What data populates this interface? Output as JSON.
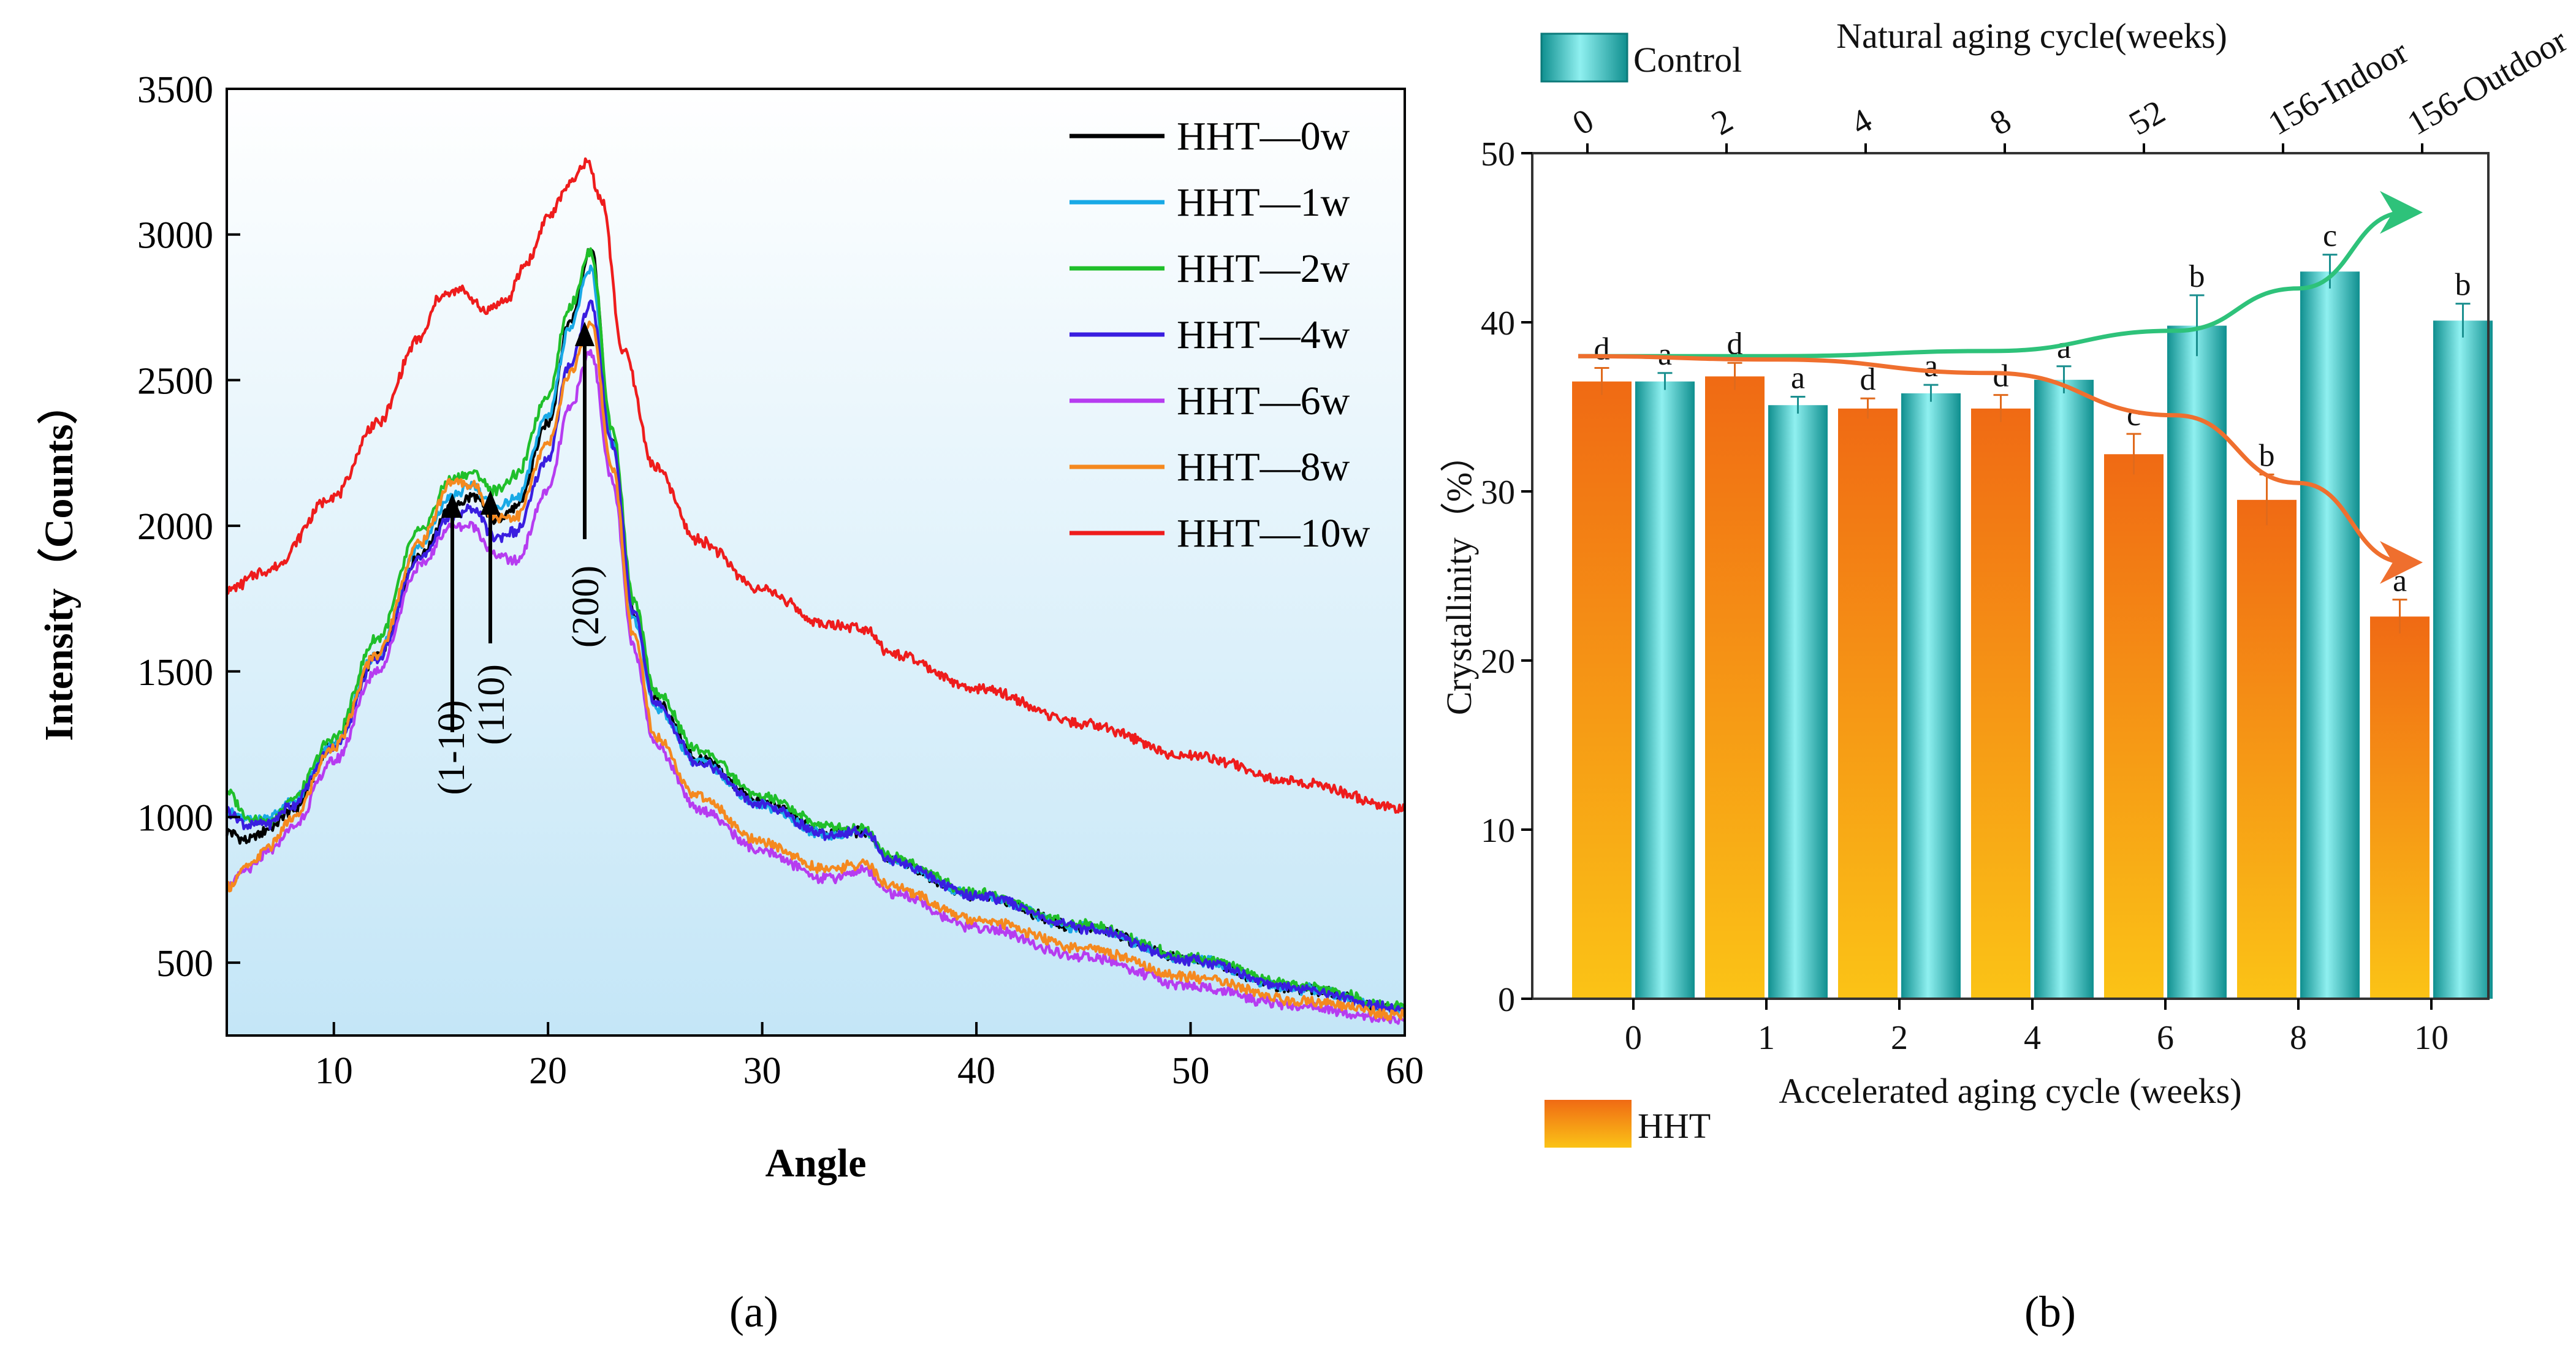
{
  "panel_a": {
    "panel_label": "(a)",
    "legend_items": [
      {
        "name": "HHT—0w",
        "color": "#000000"
      },
      {
        "name": "HHT—1w",
        "color": "#19a9e6"
      },
      {
        "name": "HHT—2w",
        "color": "#1fbf2a"
      },
      {
        "name": "HHT—4w",
        "color": "#3a1ee0"
      },
      {
        "name": "HHT—6w",
        "color": "#b63cf0"
      },
      {
        "name": "HHT—8w",
        "color": "#f5891f"
      },
      {
        "name": "HHT—10w",
        "color": "#ee1c1c"
      }
    ],
    "annotations": [
      "(1-10)",
      "(110)",
      "(200)"
    ]
  },
  "panel_b": {
    "panel_label": "(b)",
    "legend_control": "Control",
    "legend_hht": "HHT"
  },
  "chart_data": [
    {
      "type": "line",
      "title": "",
      "xlabel": "Angle",
      "ylabel": "Intensity（Counts）",
      "xlim": [
        5,
        60
      ],
      "ylim": [
        250,
        3500
      ],
      "xticks": [
        10,
        20,
        30,
        40,
        50,
        60
      ],
      "yticks": [
        500,
        1000,
        1500,
        2000,
        2500,
        3000,
        3500
      ],
      "grid": false,
      "legend_position": "top-right",
      "series": [
        {
          "name": "HHT—0w",
          "x": [
            5,
            6,
            7,
            8,
            10,
            12,
            14,
            15.5,
            16.5,
            17.5,
            18.5,
            20,
            21,
            22,
            23,
            24,
            25,
            27,
            30,
            33,
            34.8,
            36,
            40,
            45,
            50,
            55,
            60
          ],
          "y": [
            950,
            920,
            960,
            1020,
            1250,
            1550,
            1900,
            2060,
            2100,
            2020,
            2060,
            2350,
            2700,
            2950,
            2300,
            1700,
            1400,
            1200,
            1050,
            950,
            950,
            850,
            730,
            620,
            510,
            410,
            340
          ]
        },
        {
          "name": "HHT—1w",
          "x": [
            5,
            6,
            7,
            8,
            10,
            12,
            14,
            15.5,
            16.5,
            17.5,
            18.5,
            20,
            21,
            22,
            23,
            24,
            25,
            27,
            30,
            33,
            34.8,
            36,
            40,
            45,
            50,
            55,
            60
          ],
          "y": [
            1020,
            990,
            1000,
            1050,
            1250,
            1560,
            1930,
            2100,
            2140,
            2060,
            2090,
            2380,
            2680,
            2880,
            2280,
            1680,
            1380,
            1190,
            1040,
            940,
            950,
            850,
            730,
            620,
            510,
            410,
            340
          ]
        },
        {
          "name": "HHT—2w",
          "x": [
            5,
            6,
            7,
            8,
            10,
            12,
            14,
            15.5,
            16.5,
            17.5,
            18.5,
            20,
            21,
            22,
            23,
            24,
            25,
            27,
            30,
            33,
            34.8,
            36,
            40,
            45,
            50,
            55,
            60
          ],
          "y": [
            1090,
            1000,
            980,
            1060,
            1270,
            1610,
            1980,
            2160,
            2180,
            2120,
            2170,
            2450,
            2750,
            2940,
            2330,
            1740,
            1430,
            1230,
            1070,
            970,
            960,
            860,
            740,
            630,
            520,
            420,
            350
          ]
        },
        {
          "name": "HHT—4w",
          "x": [
            5,
            6,
            7,
            8,
            10,
            12,
            14,
            15.5,
            16.5,
            17.5,
            18.5,
            20,
            21,
            22,
            23,
            24,
            25,
            27,
            30,
            33,
            34.8,
            36,
            40,
            45,
            50,
            55,
            60
          ],
          "y": [
            1020,
            970,
            980,
            1040,
            1240,
            1540,
            1890,
            2030,
            2060,
            1960,
            1980,
            2230,
            2550,
            2760,
            2280,
            1700,
            1390,
            1190,
            1040,
            940,
            950,
            850,
            730,
            620,
            510,
            410,
            340
          ]
        },
        {
          "name": "HHT—6w",
          "x": [
            5,
            6,
            7,
            8,
            10,
            12,
            14,
            15.5,
            16.5,
            17.5,
            18.5,
            20,
            21,
            22,
            23,
            24,
            25,
            27,
            30,
            33,
            34.8,
            36,
            40,
            45,
            50,
            55,
            60
          ],
          "y": [
            760,
            820,
            880,
            960,
            1190,
            1500,
            1860,
            2000,
            2000,
            1900,
            1880,
            2120,
            2400,
            2600,
            2150,
            1580,
            1250,
            1030,
            880,
            790,
            820,
            740,
            620,
            520,
            420,
            350,
            300
          ]
        },
        {
          "name": "HHT—8w",
          "x": [
            5,
            6,
            7,
            8,
            10,
            12,
            14,
            15.5,
            16.5,
            17.5,
            18.5,
            20,
            21,
            22,
            23,
            24,
            25,
            27,
            30,
            33,
            34.8,
            36,
            40,
            45,
            50,
            55,
            60
          ],
          "y": [
            760,
            830,
            900,
            990,
            1240,
            1560,
            1940,
            2150,
            2140,
            2030,
            2030,
            2280,
            2520,
            2700,
            2200,
            1620,
            1280,
            1070,
            910,
            820,
            840,
            760,
            650,
            550,
            450,
            370,
            320
          ]
        },
        {
          "name": "HHT—10w",
          "x": [
            5,
            7,
            10,
            12,
            14,
            15,
            16,
            17,
            18,
            19,
            20,
            21,
            21.8,
            22.5,
            23.5,
            25,
            27,
            30,
            33,
            34.8,
            36,
            40,
            45,
            50,
            55,
            60
          ],
          "y": [
            1780,
            1850,
            2100,
            2350,
            2640,
            2790,
            2810,
            2740,
            2770,
            2900,
            3060,
            3170,
            3250,
            3120,
            2600,
            2200,
            1950,
            1780,
            1660,
            1650,
            1560,
            1440,
            1320,
            1210,
            1120,
            1030
          ]
        }
      ]
    },
    {
      "type": "bar",
      "title": "",
      "xlabel": "Accelerated aging cycle (weeks)",
      "x2label": "Natural aging cycle(weeks)",
      "ylabel": "Crystallinity（%）",
      "ylim": [
        0,
        50
      ],
      "yticks": [
        0,
        10,
        20,
        30,
        40,
        50
      ],
      "grid": false,
      "categories": [
        "0",
        "1",
        "2",
        "4",
        "6",
        "8",
        "10"
      ],
      "categories_top": [
        "0",
        "2",
        "4",
        "8",
        "52",
        "156-Indoor",
        "156-Outdoor"
      ],
      "series": [
        {
          "name": "HHT",
          "values": [
            36.5,
            36.8,
            34.9,
            34.9,
            32.2,
            29.5,
            22.6
          ],
          "errors": [
            0.8,
            0.8,
            0.6,
            0.8,
            1.2,
            1.5,
            1.0
          ],
          "letters": [
            "d",
            "d",
            "d",
            "d",
            "c",
            "b",
            "a"
          ]
        },
        {
          "name": "Control",
          "values": [
            36.5,
            35.1,
            35.8,
            36.6,
            39.8,
            43.0,
            40.1
          ],
          "errors": [
            0.5,
            0.5,
            0.5,
            0.8,
            1.8,
            1.0,
            1.0
          ],
          "letters": [
            "a",
            "a",
            "a",
            "a",
            "b",
            "c",
            "b"
          ]
        }
      ],
      "trend_arrows": [
        {
          "series": "Control",
          "y": [
            38.0,
            38.0,
            38.3,
            39.5,
            42.0,
            46.5
          ]
        },
        {
          "series": "HHT",
          "y": [
            38.0,
            37.8,
            37.0,
            34.5,
            30.5,
            25.8
          ]
        }
      ]
    }
  ]
}
